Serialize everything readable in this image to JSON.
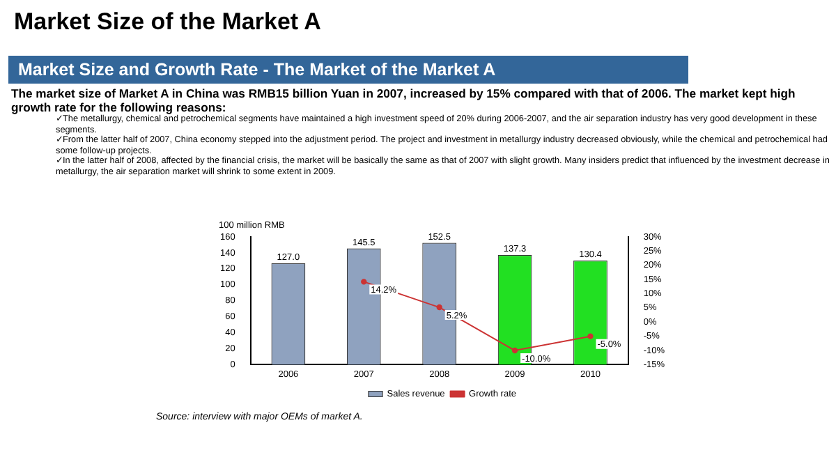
{
  "chart_data": {
    "type": "bar",
    "title": "Market Size of the Market A",
    "subtitle": "Market Size and Growth Rate - The Market of the Market A",
    "ylabel": "100 million RMB",
    "annotations": [
      "The market size of Market A in China was RMB15 billion Yuan in 2007, increased by 15% compared with that of 2006. The market kept high growth rate for the following reasons:",
      "✓The metallurgy, chemical and petrochemical segments have maintained a high investment speed of 20% during 2006-2007, and the air separation industry has very good development in these segments.",
      "✓From the latter half of 2007, China economy stepped into the adjustment period.  The project and investment in metallurgy industry decreased obviously, while the chemical and petrochemical had some follow-up projects.",
      "✓In the latter half of 2008, affected by the financial crisis, the market will be basically the same as that of 2007 with slight growth. Many insiders predict that influenced by the investment decrease in metallurgy, the air separation market will shrink to some extent in 2009.",
      "Source: interview with major OEMs of  market  A."
    ],
    "categories": [
      "2006",
      "2007",
      "2008",
      "2009",
      "2010"
    ],
    "series": [
      {
        "name": "Sales revenue",
        "colors": [
          "#8fa2bf",
          "#8fa2bf",
          "#8fa2bf",
          "#22e022",
          "#22e022"
        ],
        "values": [
          127.0,
          145.5,
          152.5,
          137.3,
          130.4
        ],
        "value_labels": [
          "127.0",
          "145.5",
          "152.5",
          "137.3",
          "130.4"
        ]
      },
      {
        "type": "line",
        "name": "Growth rate",
        "color": "#cc3333",
        "axis": "y2",
        "marker": "circle",
        "values": [
          null,
          14.2,
          5.2,
          -10.0,
          -5.0
        ],
        "value_labels": [
          null,
          "14.2%",
          "5.2%",
          "-10.0%",
          "-5.0%"
        ]
      }
    ],
    "ylim": [
      0,
      160
    ],
    "yticks": [
      0,
      20,
      40,
      60,
      80,
      100,
      120,
      140,
      160
    ],
    "y2lim": [
      -15,
      30
    ],
    "y2ticks": [
      {
        "value": -15,
        "label": "-15%"
      },
      {
        "value": -10,
        "label": "-10%"
      },
      {
        "value": -5,
        "label": "-5%"
      },
      {
        "value": 0,
        "label": "0%"
      },
      {
        "value": 5,
        "label": "5%"
      },
      {
        "value": 10,
        "label": "10%"
      },
      {
        "value": 15,
        "label": "15%"
      },
      {
        "value": 20,
        "label": "20%"
      },
      {
        "value": 25,
        "label": "25%"
      },
      {
        "value": 30,
        "label": "30%"
      }
    ],
    "legend": "bottom"
  }
}
